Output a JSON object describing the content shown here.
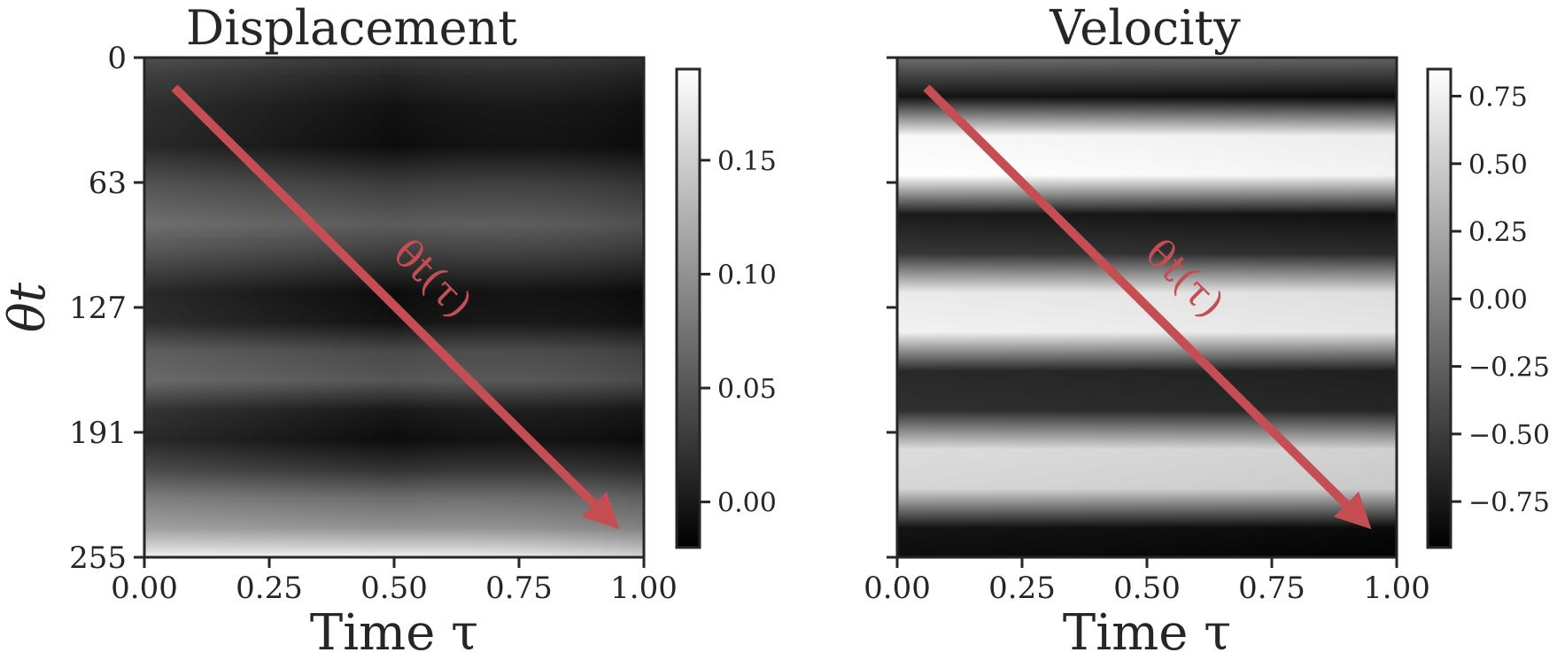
{
  "chart_data": [
    {
      "type": "heatmap",
      "title": "Displacement",
      "xlabel": "Time τ",
      "ylabel": "θt",
      "xlim": [
        0,
        1
      ],
      "ylim": [
        255,
        0
      ],
      "x_ticks": [
        "0.00",
        "0.25",
        "0.50",
        "0.75",
        "1.00"
      ],
      "y_ticks": [
        "0",
        "63",
        "127",
        "191",
        "255"
      ],
      "colorbar": {
        "range": [
          -0.02,
          0.19
        ],
        "ticks": [
          "0.00",
          "0.05",
          "0.10",
          "0.15"
        ],
        "tick_values": [
          0.0,
          0.05,
          0.1,
          0.15
        ]
      },
      "colormap": "gray",
      "row_profile": {
        "theta": [
          0,
          10,
          25,
          45,
          65,
          85,
          100,
          120,
          135,
          150,
          165,
          180,
          195,
          210,
          225,
          240,
          250,
          255
        ],
        "value": [
          0.025,
          0.01,
          -0.005,
          -0.01,
          0.03,
          0.055,
          0.03,
          -0.01,
          -0.005,
          0.04,
          0.05,
          0.0,
          -0.01,
          0.02,
          0.07,
          0.1,
          0.15,
          0.18
        ]
      },
      "annotation": {
        "text": "θt(τ)",
        "from": [
          0.06,
          8
        ],
        "to": [
          0.97,
          245
        ]
      }
    },
    {
      "type": "heatmap",
      "title": "Velocity",
      "xlabel": "Time τ",
      "ylabel": "",
      "xlim": [
        0,
        1
      ],
      "ylim": [
        255,
        0
      ],
      "x_ticks": [
        "0.00",
        "0.25",
        "0.50",
        "0.75",
        "1.00"
      ],
      "y_ticks": [
        "",
        "",
        "",
        "",
        ""
      ],
      "colorbar": {
        "range": [
          -0.92,
          0.85
        ],
        "ticks": [
          "0.75",
          "0.50",
          "0.25",
          "0.00",
          "−0.25",
          "−0.50",
          "−0.75"
        ],
        "tick_values": [
          0.75,
          0.5,
          0.25,
          0.0,
          -0.25,
          -0.5,
          -0.75
        ]
      },
      "colormap": "gray",
      "row_profile": {
        "theta": [
          0,
          20,
          40,
          60,
          80,
          100,
          120,
          140,
          160,
          180,
          200,
          220,
          240,
          255
        ],
        "value": [
          -0.2,
          -0.85,
          0.8,
          0.85,
          -0.8,
          -0.6,
          0.7,
          0.75,
          -0.7,
          -0.65,
          0.6,
          0.55,
          -0.85,
          -0.9
        ]
      },
      "annotation": {
        "text": "θt(τ)",
        "from": [
          0.06,
          8
        ],
        "to": [
          0.97,
          245
        ]
      }
    }
  ]
}
